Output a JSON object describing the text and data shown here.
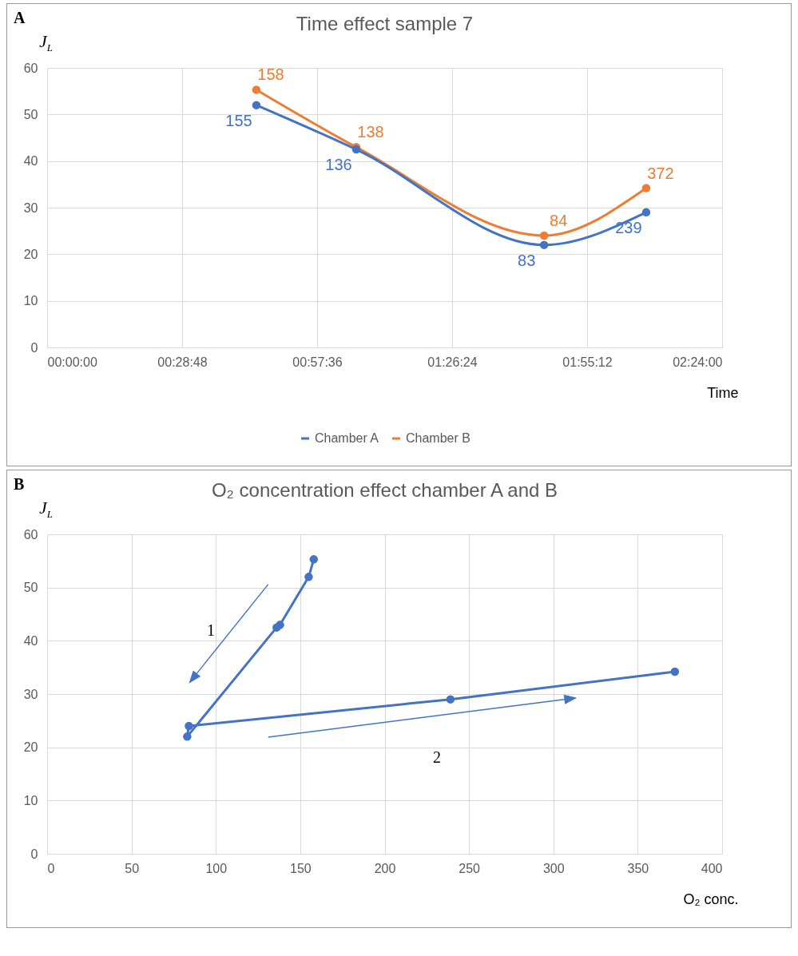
{
  "chart_data": [
    {
      "type": "line",
      "title": "Time effect sample 7",
      "xlabel": "Time",
      "ylabel": "J$_{L}$",
      "annotations": [
        "A",
        {
          "text": "155",
          "x": 0.744,
          "y": 52
        },
        {
          "text": "136",
          "x": 1.099,
          "y": 42.5
        },
        {
          "text": "83",
          "x": 1.767,
          "y": 22
        },
        {
          "text": "239",
          "x": 2.13,
          "y": 29
        },
        {
          "text": "158",
          "x": 0.744,
          "y": 55.3
        },
        {
          "text": "138",
          "x": 1.099,
          "y": 43
        },
        {
          "text": "84",
          "x": 1.767,
          "y": 24
        },
        {
          "text": "372",
          "x": 2.13,
          "y": 34.2
        }
      ],
      "x": [
        0.744,
        1.099,
        1.767,
        2.13
      ],
      "series": [
        {
          "name": "Chamber A",
          "color": "#4472c4",
          "values": [
            52,
            42.5,
            22,
            29
          ]
        },
        {
          "name": "Chamber B",
          "color": "#ed7d31",
          "values": [
            55.3,
            43,
            24,
            34.2
          ]
        }
      ],
      "xlim": [
        0,
        2.4
      ],
      "xticks": [
        {
          "value": 0,
          "label": "00:00:00"
        },
        {
          "value": 0.48,
          "label": "00:28:48"
        },
        {
          "value": 0.96,
          "label": "00:57:36"
        },
        {
          "value": 1.44,
          "label": "01:26:24"
        },
        {
          "value": 1.92,
          "label": "01:55:12"
        },
        {
          "value": 2.4,
          "label": "02:24:00"
        }
      ],
      "ylim": [
        0,
        60
      ],
      "yticks": [
        0,
        10,
        20,
        30,
        40,
        50,
        60
      ],
      "grid": true,
      "legend": "bottom",
      "marker": "circle"
    },
    {
      "type": "line",
      "title": "O₂ concentration effect chamber A and B",
      "xlabel": "O₂ conc.",
      "ylabel": "J$_{L}$",
      "annotations": [
        "B",
        "1",
        "2"
      ],
      "x": [
        158,
        155,
        138,
        136,
        83,
        84,
        239,
        372
      ],
      "series": [
        {
          "color": "#4472c4",
          "values": [
            55.3,
            52,
            43,
            42.5,
            22,
            24,
            29,
            34.2
          ]
        }
      ],
      "xlim": [
        0,
        400
      ],
      "xticks": [
        0,
        50,
        100,
        150,
        200,
        250,
        300,
        350,
        400
      ],
      "ylim": [
        0,
        60
      ],
      "yticks": [
        0,
        10,
        20,
        30,
        40,
        50,
        60
      ],
      "grid": true,
      "marker": "circle"
    }
  ]
}
